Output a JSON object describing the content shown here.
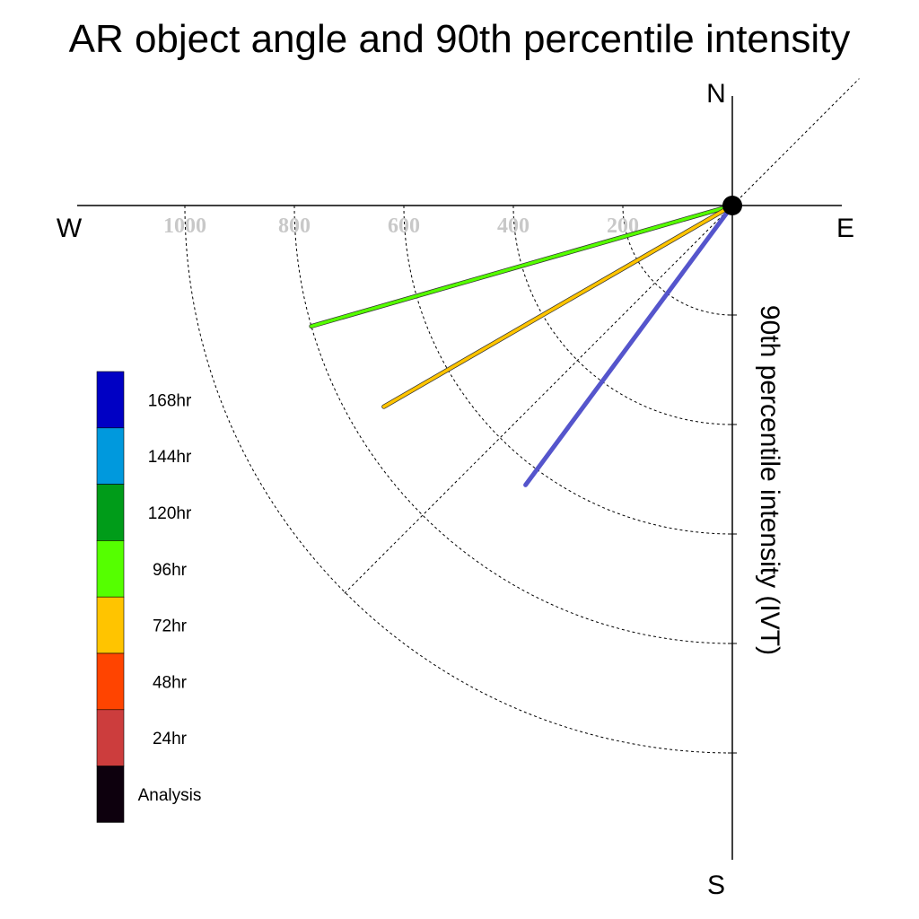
{
  "chart_data": {
    "type": "polar-vector",
    "title": "AR object angle and 90th percentile intensity",
    "ylabel": "90th percentile intensity (IVT)",
    "compass": {
      "north": "N",
      "south": "S",
      "east": "E",
      "west": "W"
    },
    "radial_ticks": [
      200,
      400,
      600,
      800,
      1000
    ],
    "radial_tick_labels": [
      "200",
      "400",
      "600",
      "800",
      "1000"
    ],
    "radial_range": [
      0,
      1200
    ],
    "grid": true,
    "legend": {
      "placement": "left",
      "entries": [
        {
          "label": "168hr",
          "color": "#0000c4"
        },
        {
          "label": "144hr",
          "color": "#0099dd"
        },
        {
          "label": "120hr",
          "color": "#009c19"
        },
        {
          "label": "96hr",
          "color": "#55ff00"
        },
        {
          "label": "72hr",
          "color": "#ffc400"
        },
        {
          "label": "48hr",
          "color": "#ff4400"
        },
        {
          "label": "24hr",
          "color": "#cc3d3d"
        },
        {
          "label": "Analysis",
          "color": "#0d000d"
        }
      ]
    },
    "vectors": [
      {
        "lead": "96hr",
        "color": "#55ff00",
        "bearing_deg": 254.0,
        "intensity": 800
      },
      {
        "lead": "72hr",
        "color": "#ffc400",
        "bearing_deg": 240.0,
        "intensity": 735
      },
      {
        "lead": "168hr",
        "color": "#5555cc",
        "bearing_deg": 216.5,
        "intensity": 635
      }
    ]
  }
}
